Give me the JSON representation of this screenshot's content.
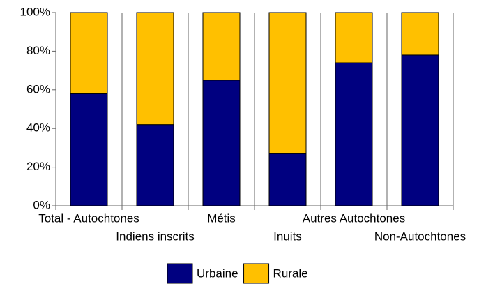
{
  "chart_data": {
    "type": "stacked_bar_100",
    "categories": [
      "Total - Autochtones",
      "Indiens inscrits",
      "Métis",
      "Inuits",
      "Autres Autochtones",
      "Non-Autochtones"
    ],
    "series": [
      {
        "name": "Urbaine",
        "color": "#000080",
        "values": [
          58,
          42,
          65,
          27,
          74,
          78
        ]
      },
      {
        "name": "Rurale",
        "color": "#ffc000",
        "values": [
          42,
          58,
          35,
          73,
          26,
          22
        ]
      }
    ],
    "ylim": [
      0,
      100
    ],
    "yticks": [
      {
        "value": 0,
        "label": "0%"
      },
      {
        "value": 20,
        "label": "20%"
      },
      {
        "value": 40,
        "label": "40%"
      },
      {
        "value": 60,
        "label": "60%"
      },
      {
        "value": 80,
        "label": "80%"
      },
      {
        "value": 100,
        "label": "100%"
      }
    ],
    "grid": true,
    "legend": "bottom"
  }
}
